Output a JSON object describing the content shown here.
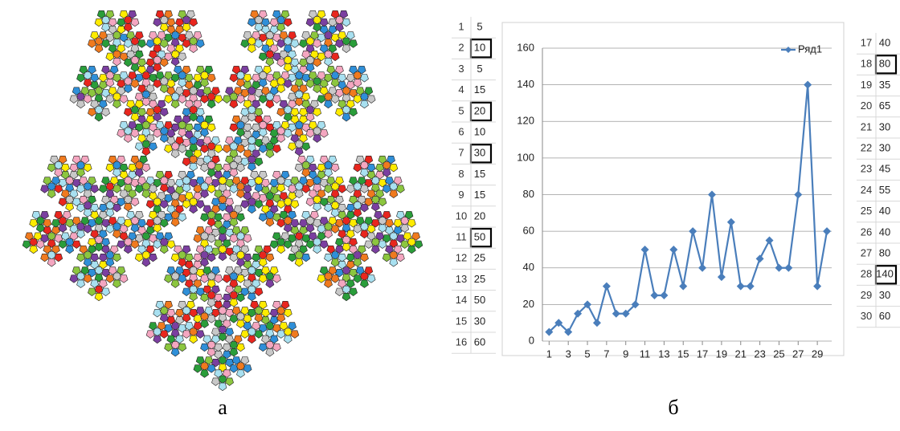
{
  "figure_left": {
    "caption": "а"
  },
  "figure_right": {
    "caption": "б"
  },
  "left_table": {
    "rows": [
      {
        "cells": [
          1,
          5
        ],
        "boxed": false
      },
      {
        "cells": [
          2,
          10
        ],
        "boxed": true
      },
      {
        "cells": [
          3,
          5
        ],
        "boxed": false
      },
      {
        "cells": [
          4,
          15
        ],
        "boxed": false
      },
      {
        "cells": [
          5,
          20
        ],
        "boxed": true
      },
      {
        "cells": [
          6,
          10
        ],
        "boxed": false
      },
      {
        "cells": [
          7,
          30
        ],
        "boxed": true
      },
      {
        "cells": [
          8,
          15
        ],
        "boxed": false
      },
      {
        "cells": [
          9,
          15
        ],
        "boxed": false
      },
      {
        "cells": [
          10,
          20
        ],
        "boxed": false
      },
      {
        "cells": [
          11,
          50
        ],
        "boxed": true
      },
      {
        "cells": [
          12,
          25
        ],
        "boxed": false
      },
      {
        "cells": [
          13,
          25
        ],
        "boxed": false
      },
      {
        "cells": [
          14,
          50
        ],
        "boxed": false
      },
      {
        "cells": [
          15,
          30
        ],
        "boxed": false
      },
      {
        "cells": [
          16,
          60
        ],
        "boxed": false
      }
    ]
  },
  "right_table": {
    "rows": [
      {
        "cells": [
          17,
          40
        ],
        "boxed": false
      },
      {
        "cells": [
          18,
          80
        ],
        "boxed": true
      },
      {
        "cells": [
          19,
          35
        ],
        "boxed": false
      },
      {
        "cells": [
          20,
          65
        ],
        "boxed": false
      },
      {
        "cells": [
          21,
          30
        ],
        "boxed": false
      },
      {
        "cells": [
          22,
          30
        ],
        "boxed": false
      },
      {
        "cells": [
          23,
          45
        ],
        "boxed": false
      },
      {
        "cells": [
          24,
          55
        ],
        "boxed": false
      },
      {
        "cells": [
          25,
          40
        ],
        "boxed": false
      },
      {
        "cells": [
          26,
          40
        ],
        "boxed": false
      },
      {
        "cells": [
          27,
          80
        ],
        "boxed": false
      },
      {
        "cells": [
          28,
          140
        ],
        "boxed": true
      },
      {
        "cells": [
          29,
          30
        ],
        "boxed": false
      },
      {
        "cells": [
          30,
          60
        ],
        "boxed": false
      }
    ]
  },
  "chart_data": {
    "type": "line",
    "x": [
      1,
      2,
      3,
      4,
      5,
      6,
      7,
      8,
      9,
      10,
      11,
      12,
      13,
      14,
      15,
      16,
      17,
      18,
      19,
      20,
      21,
      22,
      23,
      24,
      25,
      26,
      27,
      28,
      29,
      30
    ],
    "series": [
      {
        "name": "Ряд1",
        "color": "#4a7ebb",
        "values": [
          5,
          10,
          5,
          15,
          20,
          10,
          30,
          15,
          15,
          20,
          50,
          25,
          25,
          50,
          30,
          60,
          40,
          80,
          35,
          65,
          30,
          30,
          45,
          55,
          40,
          40,
          80,
          140,
          30,
          60
        ]
      }
    ],
    "xlim": [
      0.3,
      30.5
    ],
    "xticks": [
      1,
      3,
      5,
      7,
      9,
      11,
      13,
      15,
      17,
      19,
      21,
      23,
      25,
      27,
      29
    ],
    "ylim": [
      0,
      160
    ],
    "yticks": [
      0,
      20,
      40,
      60,
      80,
      100,
      120,
      140,
      160
    ],
    "grid": true,
    "legend": "top-right",
    "marker": "diamond"
  }
}
